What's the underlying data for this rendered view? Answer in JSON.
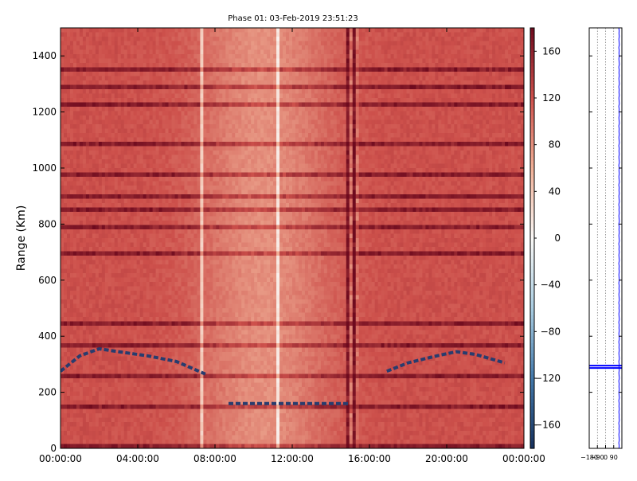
{
  "chart_data": [
    {
      "type": "heatmap",
      "title": "Phase 01: 03-Feb-2019 23:51:23",
      "xlabel": "",
      "ylabel": "Range (Km)",
      "x_ticks": [
        "00:00:00",
        "04:00:00",
        "08:00:00",
        "12:00:00",
        "16:00:00",
        "20:00:00",
        "00:00:00"
      ],
      "x_range_hours": [
        0,
        24
      ],
      "y_ticks": [
        0,
        200,
        400,
        600,
        800,
        1000,
        1200,
        1400
      ],
      "ylim": [
        0,
        1500
      ],
      "colorbar": {
        "ticks": [
          160,
          120,
          80,
          40,
          0,
          -40,
          -80,
          -120,
          -160
        ],
        "range": [
          -180,
          180
        ]
      },
      "features": {
        "dominant_phase": 120,
        "strong_range_bands_km": [
          1365,
          1300,
          1240,
          1100,
          980,
          900,
          860,
          800,
          700,
          460,
          375,
          265,
          160,
          20
        ],
        "vertical_anomaly_hours": [
          7.3,
          11.1,
          14.9,
          15.3
        ],
        "anomaly_band_hours": [
          14.75,
          15.5
        ],
        "trace_left": [
          [
            0,
            275
          ],
          [
            1.0,
            330
          ],
          [
            2.0,
            355
          ],
          [
            3.0,
            345
          ],
          [
            4.5,
            330
          ],
          [
            6.0,
            310
          ],
          [
            7.5,
            265
          ]
        ],
        "trace_right": [
          [
            16.9,
            275
          ],
          [
            18.0,
            305
          ],
          [
            19.5,
            330
          ],
          [
            20.5,
            345
          ],
          [
            21.5,
            335
          ],
          [
            23.0,
            305
          ]
        ],
        "trace_low": [
          [
            8.7,
            160
          ],
          [
            15.0,
            160
          ]
        ]
      }
    },
    {
      "type": "line",
      "x_ticks": [
        "-180",
        "-90",
        "0",
        "90"
      ],
      "xlim": [
        -180,
        180
      ],
      "ylim": [
        0,
        1500
      ],
      "marker_range_km": 295,
      "profile": [
        [
          0,
          148
        ],
        [
          10,
          150
        ],
        [
          20,
          146
        ],
        [
          30,
          152
        ],
        [
          40,
          149
        ],
        [
          50,
          147
        ],
        [
          60,
          151
        ],
        [
          70,
          148
        ],
        [
          80,
          150
        ],
        [
          90,
          146
        ],
        [
          100,
          152
        ],
        [
          110,
          149
        ],
        [
          120,
          150
        ],
        [
          130,
          147
        ],
        [
          140,
          151
        ],
        [
          150,
          148
        ],
        [
          160,
          150
        ],
        [
          170,
          146
        ],
        [
          180,
          152
        ],
        [
          190,
          149
        ],
        [
          200,
          147
        ],
        [
          210,
          151
        ],
        [
          220,
          148
        ],
        [
          230,
          150
        ],
        [
          240,
          146
        ],
        [
          250,
          152
        ],
        [
          260,
          149
        ],
        [
          270,
          147
        ],
        [
          280,
          151
        ],
        [
          290,
          148
        ],
        [
          300,
          150
        ],
        [
          310,
          146
        ],
        [
          320,
          152
        ],
        [
          330,
          149
        ],
        [
          340,
          147
        ],
        [
          350,
          151
        ],
        [
          360,
          148
        ],
        [
          370,
          150
        ],
        [
          380,
          146
        ],
        [
          390,
          152
        ],
        [
          400,
          149
        ],
        [
          410,
          147
        ],
        [
          420,
          151
        ],
        [
          430,
          148
        ],
        [
          440,
          150
        ],
        [
          450,
          146
        ],
        [
          460,
          152
        ],
        [
          470,
          149
        ],
        [
          480,
          147
        ],
        [
          490,
          151
        ],
        [
          500,
          148
        ],
        [
          510,
          150
        ],
        [
          520,
          146
        ],
        [
          530,
          152
        ],
        [
          540,
          149
        ],
        [
          550,
          147
        ],
        [
          560,
          151
        ],
        [
          570,
          148
        ],
        [
          580,
          150
        ],
        [
          590,
          146
        ],
        [
          600,
          152
        ],
        [
          610,
          149
        ],
        [
          620,
          147
        ],
        [
          630,
          151
        ],
        [
          640,
          148
        ],
        [
          650,
          150
        ],
        [
          660,
          146
        ],
        [
          670,
          152
        ],
        [
          680,
          149
        ],
        [
          690,
          147
        ],
        [
          700,
          151
        ],
        [
          710,
          148
        ],
        [
          720,
          150
        ],
        [
          730,
          146
        ],
        [
          740,
          152
        ],
        [
          750,
          149
        ],
        [
          760,
          147
        ],
        [
          770,
          151
        ],
        [
          780,
          148
        ],
        [
          790,
          150
        ],
        [
          800,
          146
        ],
        [
          810,
          152
        ],
        [
          820,
          149
        ],
        [
          830,
          147
        ],
        [
          840,
          151
        ],
        [
          850,
          148
        ],
        [
          860,
          150
        ],
        [
          870,
          146
        ],
        [
          880,
          152
        ],
        [
          890,
          149
        ],
        [
          900,
          147
        ],
        [
          910,
          151
        ],
        [
          920,
          148
        ],
        [
          930,
          150
        ],
        [
          940,
          146
        ],
        [
          950,
          152
        ],
        [
          960,
          149
        ],
        [
          970,
          147
        ],
        [
          980,
          151
        ],
        [
          990,
          148
        ],
        [
          1000,
          150
        ],
        [
          1010,
          146
        ],
        [
          1020,
          152
        ],
        [
          1030,
          149
        ],
        [
          1040,
          147
        ],
        [
          1050,
          151
        ],
        [
          1060,
          148
        ],
        [
          1070,
          150
        ],
        [
          1080,
          146
        ],
        [
          1090,
          152
        ],
        [
          1100,
          149
        ],
        [
          1110,
          147
        ],
        [
          1120,
          151
        ],
        [
          1130,
          148
        ],
        [
          1140,
          150
        ],
        [
          1150,
          146
        ],
        [
          1160,
          152
        ],
        [
          1170,
          149
        ],
        [
          1180,
          147
        ],
        [
          1190,
          151
        ],
        [
          1200,
          148
        ],
        [
          1210,
          150
        ],
        [
          1220,
          146
        ],
        [
          1230,
          152
        ],
        [
          1240,
          149
        ],
        [
          1250,
          147
        ],
        [
          1260,
          151
        ],
        [
          1270,
          148
        ],
        [
          1280,
          150
        ],
        [
          1290,
          146
        ],
        [
          1300,
          152
        ],
        [
          1310,
          149
        ],
        [
          1320,
          147
        ],
        [
          1330,
          151
        ],
        [
          1340,
          148
        ],
        [
          1350,
          150
        ],
        [
          1360,
          146
        ],
        [
          1370,
          152
        ],
        [
          1380,
          149
        ],
        [
          1390,
          147
        ],
        [
          1400,
          151
        ],
        [
          1410,
          148
        ],
        [
          1420,
          150
        ],
        [
          1430,
          146
        ],
        [
          1440,
          152
        ],
        [
          1450,
          149
        ],
        [
          1460,
          147
        ],
        [
          1470,
          151
        ],
        [
          1480,
          148
        ],
        [
          1490,
          150
        ],
        [
          1500,
          146
        ]
      ]
    }
  ]
}
